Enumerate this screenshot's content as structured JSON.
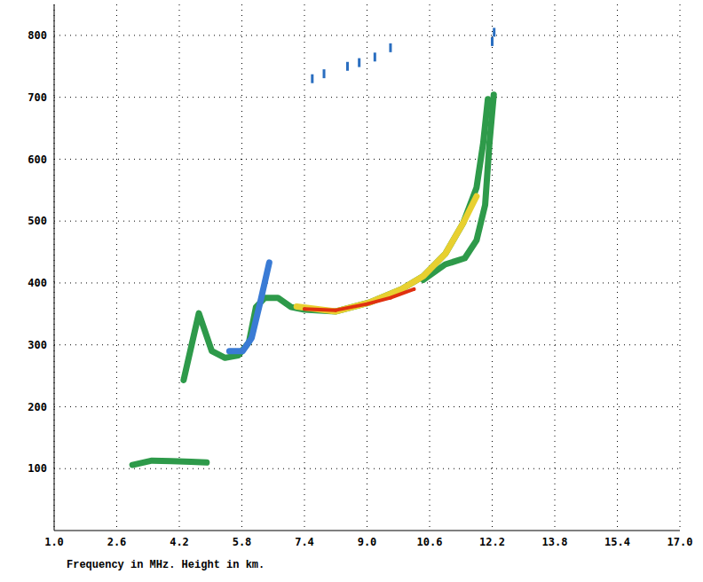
{
  "chart_data": {
    "type": "scatter",
    "x_label": "Frequency in MHz. Height in km.",
    "xlim": [
      1,
      17
    ],
    "xticks": [
      {
        "value": 1,
        "label": "1.0"
      },
      2.6,
      4.2,
      5.8,
      7.4,
      {
        "value": 9,
        "label": "9.0"
      },
      10.6,
      12.2,
      13.8,
      15.4,
      {
        "value": 17,
        "label": "17.0"
      }
    ],
    "ylim": [
      0,
      850
    ],
    "yticks": [
      100,
      200,
      300,
      400,
      500,
      600,
      700,
      800
    ],
    "grid": true,
    "series": [
      {
        "color": "#2e9a4a",
        "line_style": "solid",
        "x": [
          3.0,
          3.5,
          4.0,
          4.5,
          4.9
        ],
        "values": [
          106,
          113,
          112,
          111,
          110
        ]
      },
      {
        "color": "#2e9a4a",
        "line_style": "solid",
        "x": [
          4.31,
          4.7,
          5.03,
          5.37,
          5.71,
          5.98,
          6.16,
          6.39,
          6.72,
          7.06,
          7.4,
          8.19,
          9.09,
          9.88,
          10.44,
          11.0,
          11.46,
          11.8,
          11.97,
          12.09
        ],
        "values": [
          243,
          351,
          290,
          279,
          283,
          304,
          361,
          376,
          376,
          361,
          357,
          354,
          369,
          390,
          411,
          447,
          497,
          554,
          626,
          697
        ]
      },
      {
        "color": "#3a7bd5",
        "line_style": "solid",
        "x": [
          5.48,
          5.82,
          6.05,
          6.27,
          6.5
        ],
        "values": [
          290,
          290,
          311,
          369,
          433
        ]
      },
      {
        "color": "#2e9a4a",
        "line_style": "solid",
        "x": [
          10.44,
          11.0,
          11.5,
          11.8,
          12.02,
          12.13,
          12.24
        ],
        "values": [
          405,
          430,
          440,
          469,
          526,
          626,
          704
        ]
      },
      {
        "color": "#e8d030",
        "line_style": "solid",
        "x": [
          7.2,
          8.19,
          9.09,
          9.88,
          10.44,
          11.0,
          11.46,
          11.8
        ],
        "values": [
          362,
          354,
          369,
          390,
          411,
          447,
          497,
          540
        ]
      },
      {
        "color": "#e03010",
        "line_style": "solid",
        "x": [
          7.4,
          8.2,
          9.0,
          9.6,
          10.2
        ],
        "values": [
          358,
          356,
          366,
          376,
          390
        ]
      },
      {
        "color": "#2a6ec0",
        "marker": "circle",
        "x": [
          7.6,
          7.9,
          8.5,
          8.8,
          9.2,
          9.6,
          12.2,
          12.25
        ],
        "values": [
          730,
          738,
          750,
          756,
          765,
          780,
          790,
          805
        ]
      }
    ]
  }
}
